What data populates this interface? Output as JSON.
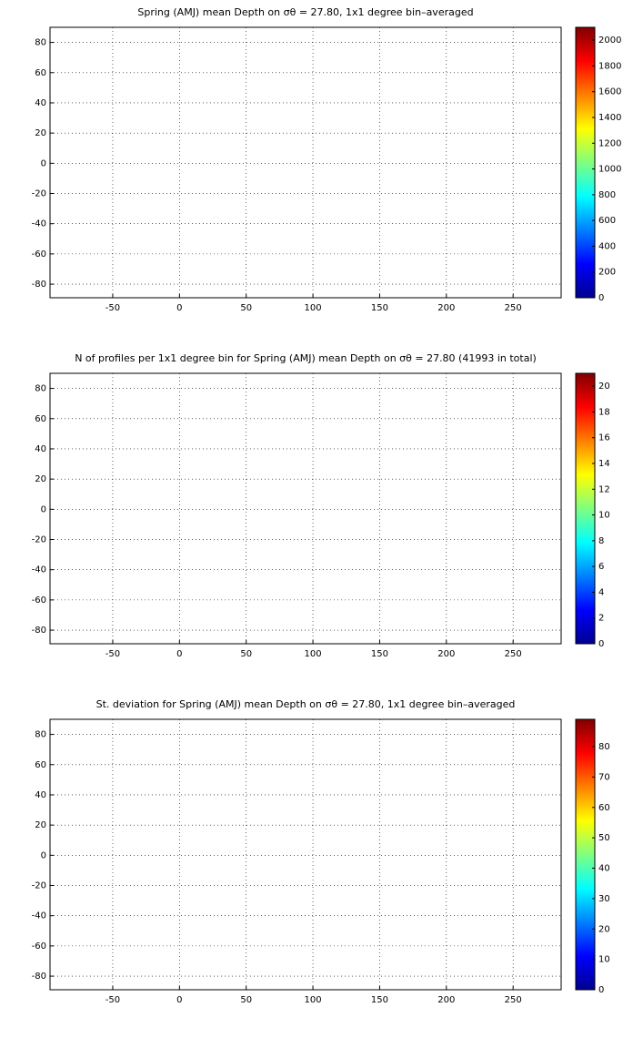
{
  "chart_data": [
    {
      "type": "heatmap",
      "title": "Spring (AMJ) mean Depth on σθ = 27.80, 1x1 degree bin–averaged",
      "xlim": [
        -97,
        286
      ],
      "ylim": [
        -89,
        90
      ],
      "xticks": [
        -50,
        0,
        50,
        100,
        150,
        200,
        250
      ],
      "yticks": [
        -80,
        -60,
        -40,
        -20,
        0,
        20,
        40,
        60,
        80
      ],
      "grid": true,
      "colormap": "jet",
      "clim": [
        0,
        2100
      ],
      "cticks": [
        0,
        200,
        400,
        600,
        800,
        1000,
        1200,
        1400,
        1600,
        1800,
        2000
      ]
    },
    {
      "type": "heatmap",
      "title": "N of profiles per 1x1 degree bin for Spring (AMJ) mean Depth on σθ = 27.80 (41993 in total)",
      "xlim": [
        -97,
        286
      ],
      "ylim": [
        -89,
        90
      ],
      "xticks": [
        -50,
        0,
        50,
        100,
        150,
        200,
        250
      ],
      "yticks": [
        -80,
        -60,
        -40,
        -20,
        0,
        20,
        40,
        60,
        80
      ],
      "grid": true,
      "colormap": "jet",
      "clim": [
        0,
        21
      ],
      "cticks": [
        0,
        2,
        4,
        6,
        8,
        10,
        12,
        14,
        16,
        18,
        20
      ]
    },
    {
      "type": "heatmap",
      "title": "St. deviation for Spring (AMJ) mean Depth on σθ = 27.80, 1x1 degree bin–averaged",
      "xlim": [
        -97,
        286
      ],
      "ylim": [
        -89,
        90
      ],
      "xticks": [
        -50,
        0,
        50,
        100,
        150,
        200,
        250
      ],
      "yticks": [
        -80,
        -60,
        -40,
        -20,
        0,
        20,
        40,
        60,
        80
      ],
      "grid": true,
      "colormap": "jet",
      "clim": [
        0,
        89
      ],
      "cticks": [
        0,
        10,
        20,
        30,
        40,
        50,
        60,
        70,
        80
      ]
    }
  ]
}
